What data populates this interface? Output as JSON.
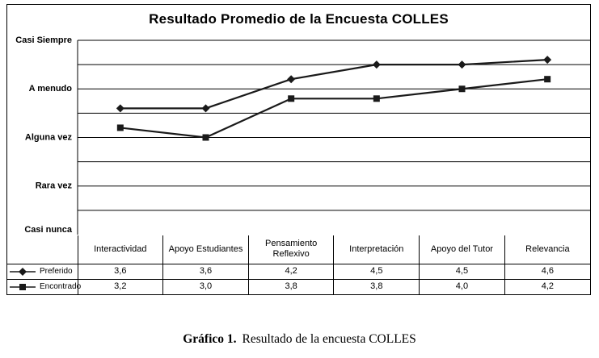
{
  "page": {
    "caption_prefix": "Gráfico 1.",
    "caption_text": "Resultado de la encuesta COLLES"
  },
  "chart_data": {
    "type": "line",
    "title": "Resultado Promedio de la Encuesta COLLES",
    "categories": [
      "Interactividad",
      "Apoyo Estudiantes",
      "Pensamiento Reflexivo",
      "Interpretación",
      "Apoyo del Tutor",
      "Relevancia"
    ],
    "y_axis": {
      "tick_values": [
        1,
        2,
        3,
        4,
        5
      ],
      "tick_labels": [
        "Casi nunca",
        "Rara vez",
        "Alguna vez",
        "A menudo",
        "Casi Siempre"
      ],
      "ylim": [
        1,
        5
      ],
      "gridline_step": 0.5,
      "grid": true
    },
    "legend_position": "table-left",
    "line_color": "#1a1a1a",
    "series": [
      {
        "name": "Preferido",
        "marker": "diamond",
        "values": [
          3.6,
          3.6,
          4.2,
          4.5,
          4.5,
          4.6
        ],
        "values_display": [
          "3,6",
          "3,6",
          "4,2",
          "4,5",
          "4,5",
          "4,6"
        ]
      },
      {
        "name": "Encontrado",
        "marker": "square",
        "values": [
          3.2,
          3.0,
          3.8,
          3.8,
          4.0,
          4.2
        ],
        "values_display": [
          "3,2",
          "3,0",
          "3,8",
          "3,8",
          "4,0",
          "4,2"
        ]
      }
    ]
  }
}
